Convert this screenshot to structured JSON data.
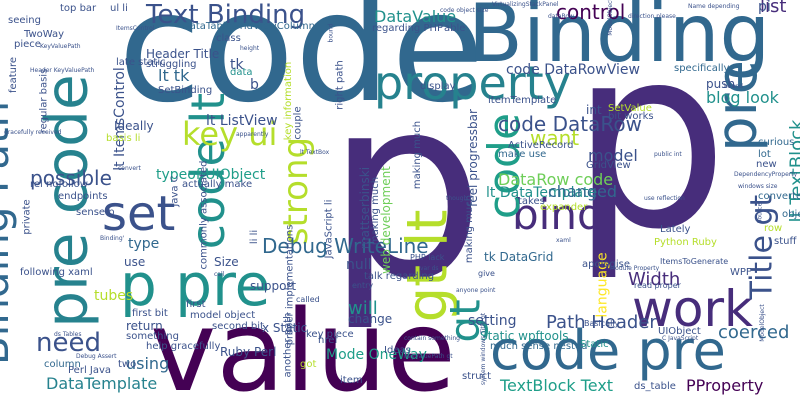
{
  "palette": {
    "dark_purple": "#440154",
    "indigo": "#3b528b",
    "deep_indigo": "#472d7b",
    "slate_blue": "#31688e",
    "teal_blue": "#26828e",
    "teal": "#21918c",
    "green_teal": "#1f9e89",
    "green": "#35b779",
    "light_green": "#6ece58",
    "lime": "#b5de2b",
    "yellow": "#fde725"
  },
  "words": [
    {
      "text": "code",
      "color": "slate_blue"
    },
    {
      "text": "p",
      "color": "deep_indigo"
    },
    {
      "text": "p",
      "color": "deep_indigo"
    },
    {
      "text": "value",
      "color": "dark_purple"
    },
    {
      "text": "Binding",
      "color": "slate_blue"
    },
    {
      "text": "code pre",
      "color": "slate_blue"
    },
    {
      "text": "pre code",
      "color": "teal_blue"
    },
    {
      "text": "Binding Path",
      "color": "slate_blue"
    },
    {
      "text": "p pre",
      "color": "teal"
    },
    {
      "text": "property",
      "color": "teal_blue"
    },
    {
      "text": "work",
      "color": "deep_indigo"
    },
    {
      "text": "pre",
      "color": "slate_blue"
    },
    {
      "text": "gt lt",
      "color": "lime"
    },
    {
      "text": "bind",
      "color": "deep_indigo"
    },
    {
      "text": "set",
      "color": "indigo"
    },
    {
      "text": "code lt",
      "color": "teal"
    },
    {
      "text": "strong",
      "color": "lime"
    },
    {
      "text": "key ui",
      "color": "lime"
    },
    {
      "text": "gt",
      "color": "teal"
    },
    {
      "text": "code",
      "color": "green_teal"
    },
    {
      "text": "Text Binding",
      "color": "indigo"
    },
    {
      "text": "DataValue",
      "color": "teal"
    },
    {
      "text": "control",
      "color": "dark_purple"
    },
    {
      "text": "list",
      "color": "deep_indigo"
    },
    {
      "text": "Title gt",
      "color": "indigo"
    },
    {
      "text": "need",
      "color": "indigo"
    },
    {
      "text": "Debug WriteLine",
      "color": "slate_blue"
    },
    {
      "text": "code DataRow",
      "color": "indigo"
    },
    {
      "text": "DataRow code",
      "color": "light_green"
    },
    {
      "text": "possible",
      "color": "indigo"
    },
    {
      "text": "Path Header",
      "color": "indigo"
    },
    {
      "text": "using",
      "color": "slate_blue"
    },
    {
      "text": "DataTemplate",
      "color": "teal_blue"
    },
    {
      "text": "TextBlock Text",
      "color": "green_teal"
    },
    {
      "text": "PProperty",
      "color": "dark_purple"
    },
    {
      "text": "Width",
      "color": "deep_indigo"
    },
    {
      "text": "coerced",
      "color": "slate_blue"
    },
    {
      "text": "lt TextBlock",
      "color": "teal"
    },
    {
      "text": "want",
      "color": "lime"
    },
    {
      "text": "will",
      "color": "teal"
    },
    {
      "text": "setting",
      "color": "indigo"
    },
    {
      "text": "lt DataTemplate",
      "color": "teal"
    },
    {
      "text": "changed",
      "color": "slate_blue"
    },
    {
      "text": "model",
      "color": "indigo"
    },
    {
      "text": "code DataRowView",
      "color": "indigo"
    },
    {
      "text": "blog look",
      "color": "teal"
    },
    {
      "text": "lt ListView",
      "color": "indigo"
    },
    {
      "text": "lt tk",
      "color": "slate_blue"
    },
    {
      "text": "typeof UIObject",
      "color": "green_teal"
    },
    {
      "text": "Mode OneWay",
      "color": "green_teal"
    },
    {
      "text": "lt ItemsControl",
      "color": "indigo"
    },
    {
      "text": "Header Title",
      "color": "indigo"
    },
    {
      "text": "DataTable",
      "color": "slate_blue"
    },
    {
      "text": "GridViewColumn",
      "color": "slate_blue"
    },
    {
      "text": "SetBinding",
      "color": "indigo"
    },
    {
      "text": "Ideally",
      "color": "indigo"
    },
    {
      "text": "type",
      "color": "slate_blue"
    },
    {
      "text": "language",
      "color": "yellow"
    },
    {
      "text": "tk DataGrid",
      "color": "slate_blue"
    },
    {
      "text": "mattserbinski",
      "color": "indigo"
    },
    {
      "text": "web development",
      "color": "light_green"
    },
    {
      "text": "feel progressbar",
      "color": "indigo"
    },
    {
      "text": "Static wpftools",
      "color": "teal"
    },
    {
      "text": "Static",
      "color": "teal"
    },
    {
      "text": "model object",
      "color": "indigo"
    },
    {
      "text": "x Static",
      "color": "indigo"
    },
    {
      "text": "Ruby Perl",
      "color": "indigo"
    },
    {
      "text": "return",
      "color": "indigo"
    },
    {
      "text": "first bit",
      "color": "indigo"
    },
    {
      "text": "first",
      "color": "indigo"
    },
    {
      "text": "null",
      "color": "indigo"
    },
    {
      "text": "change",
      "color": "indigo"
    },
    {
      "text": "use",
      "color": "indigo"
    },
    {
      "text": "tubes",
      "color": "lime"
    },
    {
      "text": "Size",
      "color": "indigo"
    },
    {
      "text": "support",
      "color": "indigo"
    },
    {
      "text": "item",
      "color": "indigo"
    },
    {
      "text": "struct",
      "color": "indigo"
    },
    {
      "text": "Ideas",
      "color": "indigo"
    },
    {
      "text": "two",
      "color": "indigo"
    },
    {
      "text": "column",
      "color": "slate_blue"
    },
    {
      "text": "Perl Java",
      "color": "indigo"
    },
    {
      "text": "ds_table",
      "color": "indigo"
    },
    {
      "text": "got",
      "color": "lime"
    },
    {
      "text": "href",
      "color": "indigo"
    },
    {
      "text": "much sense nested",
      "color": "slate_blue"
    },
    {
      "text": "UIObject",
      "color": "indigo"
    },
    {
      "text": "converter",
      "color": "slate_blue"
    },
    {
      "text": "object",
      "color": "slate_blue"
    },
    {
      "text": "row",
      "color": "lime"
    },
    {
      "text": "new",
      "color": "indigo"
    },
    {
      "text": "curious",
      "color": "slate_blue"
    },
    {
      "text": "lot",
      "color": "slate_blue"
    },
    {
      "text": "push",
      "color": "indigo"
    },
    {
      "text": "specifically",
      "color": "slate_blue"
    },
    {
      "text": "int",
      "color": "indigo"
    },
    {
      "text": "bit works",
      "color": "indigo"
    },
    {
      "text": "itemTemplate",
      "color": "indigo"
    },
    {
      "text": "display",
      "color": "indigo"
    },
    {
      "text": "ActiveRecord",
      "color": "indigo"
    },
    {
      "text": "GridView",
      "color": "indigo"
    },
    {
      "text": "SetValue",
      "color": "lime"
    },
    {
      "text": "stuff",
      "color": "indigo"
    },
    {
      "text": "Python Ruby",
      "color": "lime"
    },
    {
      "text": "WPF",
      "color": "indigo"
    },
    {
      "text": "Lately",
      "color": "indigo"
    },
    {
      "text": "apologise",
      "color": "indigo"
    },
    {
      "text": "expander",
      "color": "lime"
    },
    {
      "text": "takes",
      "color": "indigo"
    },
    {
      "text": "Basically",
      "color": "indigo"
    },
    {
      "text": "pi",
      "color": "indigo"
    },
    {
      "text": "class",
      "color": "indigo"
    },
    {
      "text": "regarding PHP",
      "color": "indigo"
    },
    {
      "text": "able",
      "color": "indigo"
    },
    {
      "text": "late static",
      "color": "indigo"
    },
    {
      "text": "struggling",
      "color": "indigo"
    },
    {
      "text": "data",
      "color": "teal"
    },
    {
      "text": "tk",
      "color": "indigo"
    },
    {
      "text": "b",
      "color": "indigo"
    },
    {
      "text": "key information",
      "color": "lime"
    },
    {
      "text": "couple",
      "color": "indigo"
    },
    {
      "text": "basis li",
      "color": "lime"
    },
    {
      "text": "seeing",
      "color": "indigo"
    },
    {
      "text": "TwoWay",
      "color": "indigo"
    },
    {
      "text": "piece",
      "color": "indigo"
    },
    {
      "text": "top bar",
      "color": "indigo"
    },
    {
      "text": "ul li",
      "color": "indigo"
    },
    {
      "text": "feature",
      "color": "indigo"
    },
    {
      "text": "regular basis",
      "color": "indigo"
    },
    {
      "text": "rel nofollow",
      "color": "indigo"
    },
    {
      "text": "endpoints",
      "color": "indigo"
    },
    {
      "text": "sense p",
      "color": "indigo"
    },
    {
      "text": "following xaml",
      "color": "indigo"
    },
    {
      "text": "talk regarding",
      "color": "indigo"
    },
    {
      "text": "key piece",
      "color": "indigo"
    },
    {
      "text": "li li",
      "color": "indigo"
    },
    {
      "text": "Java C",
      "color": "indigo"
    },
    {
      "text": "var",
      "color": "indigo"
    },
    {
      "text": "private",
      "color": "indigo"
    },
    {
      "text": "commonly associated",
      "color": "indigo"
    },
    {
      "text": "proper implementations",
      "color": "indigo"
    },
    {
      "text": "another path",
      "color": "indigo"
    },
    {
      "text": "JavaScript li",
      "color": "indigo"
    },
    {
      "text": "making much",
      "color": "indigo"
    },
    {
      "text": "actually make",
      "color": "indigo"
    },
    {
      "text": "second bit",
      "color": "indigo"
    },
    {
      "text": "make use",
      "color": "slate_blue"
    },
    {
      "text": "give",
      "color": "indigo"
    },
    {
      "text": "PHP lack",
      "color": "indigo"
    },
    {
      "text": "right path",
      "color": "indigo"
    },
    {
      "text": "read proper",
      "color": "indigo"
    },
    {
      "text": "C JavaScript",
      "color": "indigo"
    },
    {
      "text": "ItemsToGenerate",
      "color": "indigo"
    },
    {
      "text": "help gracefully",
      "color": "indigo"
    },
    {
      "text": "something",
      "color": "indigo"
    },
    {
      "text": "Binding'",
      "color": "indigo"
    },
    {
      "text": "called",
      "color": "indigo"
    },
    {
      "text": "entry",
      "color": "indigo"
    },
    {
      "text": "xaml",
      "color": "indigo"
    },
    {
      "text": "call",
      "color": "indigo"
    },
    {
      "text": "ItemsControl",
      "color": "indigo"
    },
    {
      "text": "Debug Assert",
      "color": "indigo"
    },
    {
      "text": "KeyValuePath",
      "color": "indigo"
    },
    {
      "text": "Header KeyValuePath",
      "color": "indigo"
    },
    {
      "text": "gracefully received",
      "color": "indigo"
    },
    {
      "text": "ds Tables",
      "color": "indigo"
    },
    {
      "text": "DependencyProperty",
      "color": "indigo"
    },
    {
      "text": "windows size",
      "color": "indigo"
    },
    {
      "text": "apparently",
      "color": "indigo"
    },
    {
      "text": "Source",
      "color": "indigo"
    },
    {
      "text": "Name depending",
      "color": "indigo"
    },
    {
      "text": "Module Property",
      "color": "indigo"
    },
    {
      "text": "ModelObject",
      "color": "indigo"
    },
    {
      "text": "system windows Title gt",
      "color": "indigo"
    },
    {
      "text": "VirtualizingStackPanel",
      "color": "indigo"
    },
    {
      "text": "dataRow",
      "color": "indigo"
    },
    {
      "text": "direction please",
      "color": "indigo"
    },
    {
      "text": "lt TextBox",
      "color": "indigo"
    },
    {
      "text": "KeyValuePath gt",
      "color": "indigo"
    },
    {
      "text": "contain something",
      "color": "indigo"
    },
    {
      "text": "convert",
      "color": "indigo"
    },
    {
      "text": "height",
      "color": "indigo"
    },
    {
      "text": "though",
      "color": "indigo"
    },
    {
      "text": "public int",
      "color": "indigo"
    },
    {
      "text": "bound",
      "color": "indigo"
    },
    {
      "text": "var ds",
      "color": "indigo"
    },
    {
      "text": "anyone point",
      "color": "indigo"
    },
    {
      "text": "use reflection",
      "color": "indigo"
    },
    {
      "text": "code object size",
      "color": "indigo"
    },
    {
      "text": "right direction",
      "color": "indigo"
    },
    {
      "text": "x Name",
      "color": "indigo"
    },
    {
      "text": "model got",
      "color": "indigo"
    },
    {
      "text": "lt Button",
      "color": "indigo"
    }
  ]
}
